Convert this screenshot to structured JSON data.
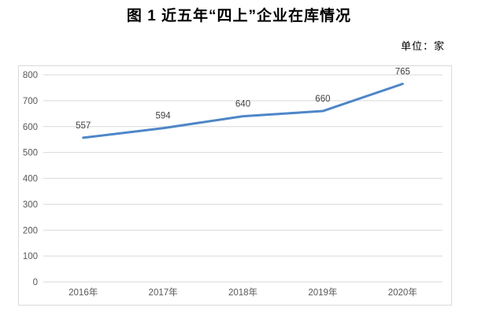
{
  "header": {
    "title": "图 1  近五年“四上”企业在库情况",
    "unit_label": "单位：家"
  },
  "chart_data": {
    "type": "line",
    "title": "图 1  近五年“四上”企业在库情况",
    "unit": "单位：家",
    "categories": [
      "2016年",
      "2017年",
      "2018年",
      "2019年",
      "2020年"
    ],
    "values": [
      557,
      594,
      640,
      660,
      765
    ],
    "xlabel": "",
    "ylabel": "",
    "ylim": [
      0,
      800
    ],
    "ytick_step": 100,
    "grid": true,
    "legend": "none",
    "colors": {
      "line": "#4e86c8",
      "gridline": "#d9d9d9",
      "axis_label": "#595959",
      "data_label": "#404040",
      "frame_border": "#d9d9d9",
      "background": "#ffffff"
    }
  }
}
